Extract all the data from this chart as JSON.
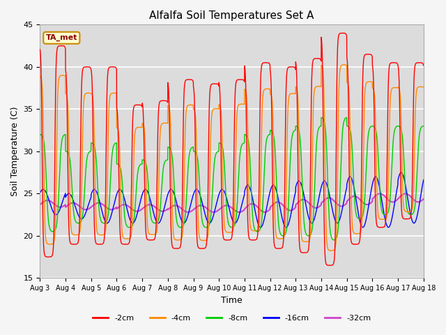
{
  "title": "Alfalfa Soil Temperatures Set A",
  "xlabel": "Time",
  "ylabel": "Soil Temperature (C)",
  "ylim": [
    15,
    45
  ],
  "annotation": "TA_met",
  "bg_color": "#dcdcdc",
  "series": {
    "-2cm": {
      "color": "#ff0000",
      "linewidth": 1.0
    },
    "-4cm": {
      "color": "#ff8800",
      "linewidth": 1.0
    },
    "-8cm": {
      "color": "#00cc00",
      "linewidth": 1.0
    },
    "-16cm": {
      "color": "#0000ff",
      "linewidth": 1.0
    },
    "-32cm": {
      "color": "#cc44cc",
      "linewidth": 1.5
    }
  },
  "xtick_labels": [
    "Aug 3",
    "Aug 4",
    "Aug 5",
    "Aug 6",
    "Aug 7",
    "Aug 8",
    "Aug 9",
    "Aug 10",
    "Aug 11",
    "Aug 12",
    "Aug 13",
    "Aug 14",
    "Aug 15",
    "Aug 16",
    "Aug 17",
    "Aug 18"
  ],
  "ytick_labels": [
    15,
    20,
    25,
    30,
    35,
    40,
    45
  ],
  "legend_labels": [
    "-2cm",
    "-4cm",
    "-8cm",
    "-16cm",
    "-32cm"
  ],
  "legend_colors": [
    "#ff0000",
    "#ff8800",
    "#00cc00",
    "#0000ff",
    "#cc44cc"
  ],
  "figsize": [
    6.4,
    4.8
  ],
  "dpi": 100,
  "peaks_2cm": [
    42.5,
    40.0,
    40.0,
    35.5,
    36.0,
    38.5,
    38.0,
    38.5,
    40.5,
    40.0,
    41.0,
    44.0,
    41.5,
    40.5,
    40.5,
    40.5
  ],
  "troughs_2cm": [
    17.5,
    19.0,
    19.0,
    19.0,
    19.5,
    18.5,
    18.5,
    19.5,
    19.5,
    18.5,
    18.0,
    16.5,
    19.0,
    21.0,
    22.0,
    22.0
  ],
  "peaks_8cm": [
    32.0,
    30.0,
    31.0,
    28.5,
    29.0,
    30.5,
    30.0,
    31.0,
    32.0,
    32.5,
    33.0,
    34.0,
    33.0,
    33.0,
    33.0,
    33.0
  ],
  "troughs_8cm": [
    20.5,
    21.5,
    21.5,
    21.0,
    21.5,
    21.0,
    21.0,
    21.0,
    20.5,
    20.0,
    20.0,
    19.5,
    22.0,
    22.5,
    22.5,
    22.5
  ],
  "peaks_16cm_amp": [
    1.5,
    1.5,
    2.0,
    2.0,
    2.0,
    2.0,
    2.0,
    2.0,
    2.5,
    2.5,
    2.5,
    2.5,
    3.0,
    3.0,
    3.0,
    3.0
  ],
  "mid_16cm": [
    24.0,
    23.5,
    23.5,
    23.5,
    23.5,
    23.5,
    23.5,
    23.5,
    23.5,
    23.5,
    24.0,
    24.0,
    24.0,
    24.0,
    24.5,
    24.5
  ],
  "mid_32cm": [
    23.8,
    23.5,
    23.5,
    23.3,
    23.3,
    23.2,
    23.2,
    23.2,
    23.3,
    23.5,
    23.8,
    24.0,
    24.2,
    24.5,
    24.5,
    24.5
  ],
  "amp_32cm": [
    0.4,
    0.4,
    0.4,
    0.4,
    0.4,
    0.4,
    0.4,
    0.4,
    0.5,
    0.5,
    0.5,
    0.5,
    0.5,
    0.5,
    0.5,
    0.5
  ]
}
